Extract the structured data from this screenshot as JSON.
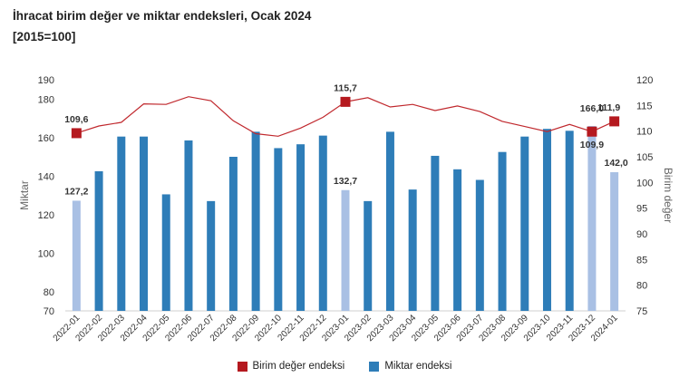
{
  "title": "İhracat birim değer ve miktar endeksleri, Ocak 2024",
  "subtitle": "[2015=100]",
  "colors": {
    "bar": "#2e7db8",
    "bar_highlight": "#a9c0e4",
    "line": "#c0282d",
    "marker": "#b5191f"
  },
  "legend": {
    "unit_value": "Birim değer endeksi",
    "quantity": "Miktar endeksi"
  },
  "chart_data": {
    "type": "bar",
    "title": "İhracat birim değer ve miktar endeksleri, Ocak 2024",
    "subtitle": "[2015=100]",
    "categories": [
      "2022-01",
      "2022-02",
      "2022-03",
      "2022-04",
      "2022-05",
      "2022-06",
      "2022-07",
      "2022-08",
      "2022-09",
      "2022-10",
      "2022-11",
      "2022-12",
      "2023-01",
      "2023-02",
      "2023-03",
      "2023-04",
      "2023-05",
      "2023-06",
      "2023-07",
      "2023-08",
      "2023-09",
      "2023-10",
      "2023-11",
      "2023-12",
      "2024-01"
    ],
    "ylabel": "Miktar",
    "y2label": "Birim değer",
    "ylim": [
      70,
      190
    ],
    "y_ticks": [
      70,
      80,
      100,
      120,
      140,
      160,
      180,
      190
    ],
    "y2lim": [
      75,
      120
    ],
    "y2_ticks": [
      75,
      80,
      85,
      90,
      95,
      100,
      105,
      110,
      115,
      120
    ],
    "legend_position": "bottom",
    "series": [
      {
        "name": "Miktar endeksi",
        "type": "bar",
        "axis": "left",
        "values": [
          127.2,
          142.5,
          160.5,
          160.5,
          130.5,
          158.5,
          127.0,
          150.0,
          163.0,
          154.5,
          156.5,
          161.0,
          132.7,
          127.0,
          163.0,
          133.0,
          150.5,
          143.5,
          138.0,
          152.5,
          160.5,
          164.5,
          163.5,
          166.0,
          142.0
        ],
        "highlighted": [
          "2022-01",
          "2023-01",
          "2023-12",
          "2024-01"
        ]
      },
      {
        "name": "Birim değer endeksi",
        "type": "line",
        "axis": "right",
        "values": [
          109.6,
          111.0,
          111.7,
          115.3,
          115.2,
          116.7,
          115.9,
          112.0,
          109.5,
          109.0,
          110.6,
          112.7,
          115.7,
          116.5,
          114.7,
          115.2,
          114.0,
          114.9,
          113.8,
          111.9,
          110.9,
          109.9,
          111.3,
          109.9,
          111.9
        ],
        "markers": [
          "2022-01",
          "2023-01",
          "2023-12",
          "2024-01"
        ]
      }
    ],
    "data_labels": [
      {
        "series": "Miktar endeksi",
        "category": "2022-01",
        "text": "127,2"
      },
      {
        "series": "Miktar endeksi",
        "category": "2023-01",
        "text": "132,7"
      },
      {
        "series": "Miktar endeksi",
        "category": "2023-12",
        "text": "166,0"
      },
      {
        "series": "Miktar endeksi",
        "category": "2024-01",
        "text": "142,0"
      },
      {
        "series": "Birim değer endeksi",
        "category": "2022-01",
        "text": "109,6"
      },
      {
        "series": "Birim değer endeksi",
        "category": "2023-01",
        "text": "115,7"
      },
      {
        "series": "Birim değer endeksi",
        "category": "2023-12",
        "text": "109,9"
      },
      {
        "series": "Birim değer endeksi",
        "category": "2024-01",
        "text": "111,9"
      }
    ]
  }
}
